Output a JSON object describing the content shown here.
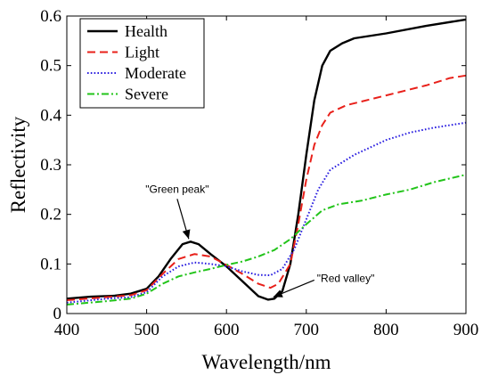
{
  "chart_data": {
    "type": "line",
    "xlabel": "Wavelength/nm",
    "ylabel": "Reflectivity",
    "xlim": [
      400,
      900
    ],
    "ylim": [
      0,
      0.6
    ],
    "xticks": [
      400,
      500,
      600,
      700,
      800,
      900
    ],
    "yticks": [
      0,
      0.1,
      0.2,
      0.3,
      0.4,
      0.5,
      0.6
    ],
    "ytick_labels": [
      "0",
      "0.1",
      "0.2",
      "0.3",
      "0.4",
      "0.5",
      "0.6"
    ],
    "grid": false,
    "legend_position": "top-left",
    "series": [
      {
        "name": "Health",
        "color": "#000000",
        "dash": "solid",
        "points": [
          [
            400,
            0.03
          ],
          [
            430,
            0.034
          ],
          [
            460,
            0.036
          ],
          [
            480,
            0.04
          ],
          [
            500,
            0.05
          ],
          [
            515,
            0.075
          ],
          [
            530,
            0.11
          ],
          [
            545,
            0.14
          ],
          [
            555,
            0.145
          ],
          [
            565,
            0.14
          ],
          [
            580,
            0.12
          ],
          [
            600,
            0.095
          ],
          [
            620,
            0.065
          ],
          [
            640,
            0.035
          ],
          [
            652,
            0.028
          ],
          [
            660,
            0.03
          ],
          [
            670,
            0.045
          ],
          [
            680,
            0.1
          ],
          [
            690,
            0.2
          ],
          [
            700,
            0.32
          ],
          [
            710,
            0.43
          ],
          [
            720,
            0.5
          ],
          [
            730,
            0.53
          ],
          [
            745,
            0.545
          ],
          [
            760,
            0.555
          ],
          [
            800,
            0.565
          ],
          [
            850,
            0.58
          ],
          [
            900,
            0.593
          ]
        ]
      },
      {
        "name": "Light",
        "color": "#e8201a",
        "dash": "dashed",
        "points": [
          [
            400,
            0.027
          ],
          [
            450,
            0.033
          ],
          [
            480,
            0.037
          ],
          [
            500,
            0.047
          ],
          [
            520,
            0.08
          ],
          [
            540,
            0.11
          ],
          [
            560,
            0.12
          ],
          [
            580,
            0.115
          ],
          [
            600,
            0.098
          ],
          [
            620,
            0.08
          ],
          [
            640,
            0.06
          ],
          [
            655,
            0.052
          ],
          [
            665,
            0.06
          ],
          [
            680,
            0.1
          ],
          [
            690,
            0.18
          ],
          [
            700,
            0.27
          ],
          [
            710,
            0.34
          ],
          [
            720,
            0.38
          ],
          [
            730,
            0.405
          ],
          [
            750,
            0.42
          ],
          [
            800,
            0.44
          ],
          [
            850,
            0.46
          ],
          [
            880,
            0.475
          ],
          [
            900,
            0.48
          ]
        ]
      },
      {
        "name": "Moderate",
        "color": "#2a1ee0",
        "dash": "dotted",
        "points": [
          [
            400,
            0.022
          ],
          [
            450,
            0.03
          ],
          [
            480,
            0.033
          ],
          [
            500,
            0.043
          ],
          [
            520,
            0.075
          ],
          [
            540,
            0.095
          ],
          [
            560,
            0.103
          ],
          [
            580,
            0.1
          ],
          [
            600,
            0.095
          ],
          [
            620,
            0.085
          ],
          [
            640,
            0.078
          ],
          [
            655,
            0.077
          ],
          [
            670,
            0.09
          ],
          [
            685,
            0.13
          ],
          [
            700,
            0.19
          ],
          [
            715,
            0.25
          ],
          [
            730,
            0.29
          ],
          [
            760,
            0.32
          ],
          [
            800,
            0.35
          ],
          [
            830,
            0.365
          ],
          [
            860,
            0.375
          ],
          [
            900,
            0.385
          ]
        ]
      },
      {
        "name": "Severe",
        "color": "#22c41a",
        "dash": "dashdot",
        "points": [
          [
            400,
            0.018
          ],
          [
            450,
            0.025
          ],
          [
            480,
            0.03
          ],
          [
            500,
            0.04
          ],
          [
            520,
            0.06
          ],
          [
            540,
            0.075
          ],
          [
            560,
            0.083
          ],
          [
            580,
            0.09
          ],
          [
            600,
            0.098
          ],
          [
            620,
            0.105
          ],
          [
            640,
            0.115
          ],
          [
            660,
            0.128
          ],
          [
            680,
            0.15
          ],
          [
            700,
            0.18
          ],
          [
            720,
            0.208
          ],
          [
            740,
            0.22
          ],
          [
            770,
            0.228
          ],
          [
            800,
            0.24
          ],
          [
            830,
            0.25
          ],
          [
            860,
            0.265
          ],
          [
            900,
            0.28
          ]
        ]
      }
    ],
    "annotations": [
      {
        "text": "\"Green peak\"",
        "x": 555,
        "y": 0.145
      },
      {
        "text": "\"Red valley\"",
        "x": 652,
        "y": 0.028
      }
    ]
  }
}
